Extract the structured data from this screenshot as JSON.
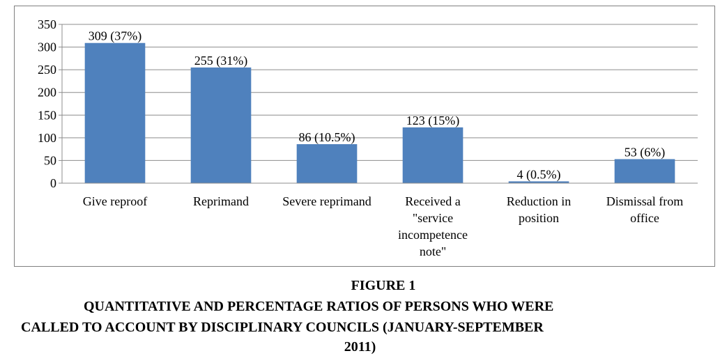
{
  "chart_data": {
    "type": "bar",
    "categories": [
      "Give reproof",
      "Reprimand",
      "Severe reprimand",
      "Received a \"service incompetence note\"",
      "Reduction in position",
      "Dismissal from office"
    ],
    "category_lines": [
      [
        "Give reproof"
      ],
      [
        "Reprimand"
      ],
      [
        "Severe reprimand"
      ],
      [
        "Received a",
        "\"service",
        "incompetence",
        "note\""
      ],
      [
        "Reduction in",
        "position"
      ],
      [
        "Dismissal from",
        "office"
      ]
    ],
    "values": [
      309,
      255,
      86,
      123,
      4,
      53
    ],
    "data_labels": [
      "309 (37%)",
      "255 (31%)",
      "86 (10.5%)",
      "123 (15%)",
      "4 (0.5%)",
      "53 (6%)"
    ],
    "y_ticks": [
      0,
      50,
      100,
      150,
      200,
      250,
      300,
      350
    ],
    "ylim": [
      0,
      350
    ],
    "grid": true,
    "legend": "none",
    "bar_color": "#4f81bd",
    "grid_color": "#8c8c8c"
  },
  "caption": {
    "figure_number": "FIGURE 1",
    "line1": "QUANTITATIVE AND PERCENTAGE RATIOS OF PERSONS WHO WERE",
    "line2": "CALLED TO ACCOUNT BY DISCIPLINARY COUNCILS (JANUARY-SEPTEMBER",
    "line3": "2011)"
  }
}
